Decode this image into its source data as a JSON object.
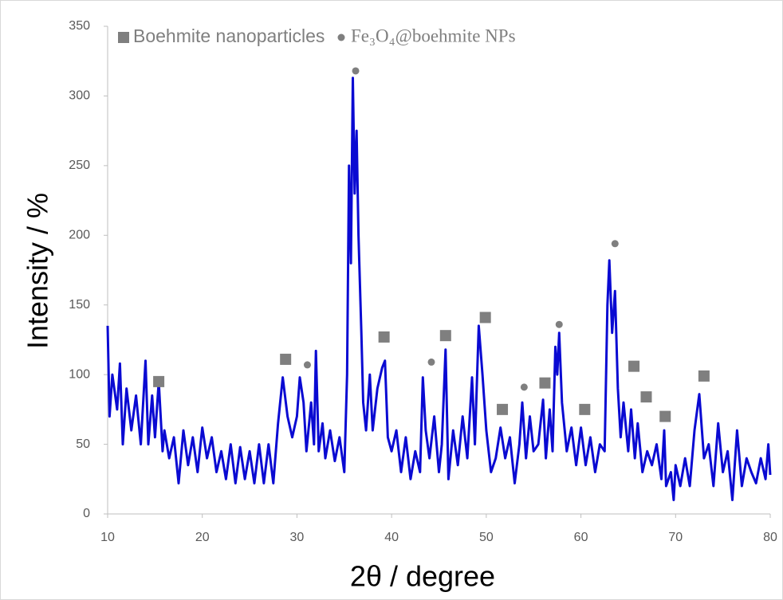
{
  "chart_data": {
    "type": "line",
    "x_label": "2θ / degree",
    "y_label": "Intensity / %",
    "xlim": [
      10,
      80
    ],
    "xticks": [
      10,
      20,
      30,
      40,
      50,
      60,
      70,
      80
    ],
    "ylim": [
      0,
      350
    ],
    "yticks": [
      0,
      50,
      100,
      150,
      200,
      250,
      300,
      350
    ],
    "color": "#0a0ad2",
    "x": [
      10,
      10.2,
      10.5,
      11,
      11.3,
      11.6,
      12,
      12.5,
      13,
      13.5,
      14,
      14.3,
      14.7,
      15,
      15.4,
      15.8,
      16,
      16.5,
      17,
      17.5,
      18,
      18.5,
      19,
      19.5,
      20,
      20.5,
      21,
      21.5,
      22,
      22.5,
      23,
      23.5,
      24,
      24.5,
      25,
      25.5,
      26,
      26.5,
      27,
      27.5,
      28,
      28.5,
      29,
      29.5,
      30,
      30.3,
      30.7,
      31,
      31.5,
      31.8,
      32,
      32.3,
      32.7,
      33,
      33.5,
      34,
      34.5,
      35,
      35.3,
      35.5,
      35.7,
      35.9,
      36.1,
      36.3,
      36.5,
      36.8,
      37,
      37.3,
      37.7,
      38,
      38.5,
      39,
      39.3,
      39.6,
      40,
      40.5,
      41,
      41.5,
      42,
      42.5,
      43,
      43.3,
      43.6,
      44,
      44.5,
      45,
      45.3,
      45.7,
      46,
      46.5,
      47,
      47.5,
      48,
      48.5,
      48.8,
      49.2,
      49.6,
      50,
      50.5,
      51,
      51.5,
      52,
      52.5,
      53,
      53.5,
      53.8,
      54.2,
      54.6,
      55,
      55.5,
      56,
      56.3,
      56.7,
      57,
      57.3,
      57.5,
      57.7,
      58,
      58.5,
      59,
      59.5,
      60,
      60.5,
      61,
      61.5,
      62,
      62.5,
      62.8,
      63,
      63.3,
      63.6,
      63.9,
      64.2,
      64.5,
      65,
      65.3,
      65.7,
      66,
      66.5,
      67,
      67.5,
      68,
      68.5,
      68.8,
      69,
      69.5,
      69.8,
      70,
      70.5,
      71,
      71.5,
      72,
      72.5,
      73,
      73.5,
      74,
      74.5,
      75,
      75.5,
      76,
      76.5,
      77,
      77.5,
      78,
      78.5,
      79,
      79.5,
      79.8,
      80
    ],
    "values": [
      135,
      70,
      100,
      75,
      108,
      50,
      90,
      60,
      85,
      50,
      110,
      50,
      85,
      55,
      95,
      45,
      60,
      40,
      55,
      22,
      60,
      35,
      55,
      30,
      62,
      40,
      55,
      30,
      45,
      25,
      50,
      22,
      48,
      25,
      45,
      22,
      50,
      22,
      50,
      22,
      65,
      98,
      70,
      55,
      70,
      98,
      80,
      45,
      80,
      50,
      117,
      45,
      65,
      40,
      60,
      38,
      55,
      30,
      100,
      250,
      180,
      313,
      230,
      275,
      200,
      130,
      80,
      60,
      100,
      60,
      90,
      105,
      110,
      55,
      45,
      60,
      30,
      55,
      25,
      45,
      30,
      98,
      60,
      40,
      70,
      30,
      50,
      118,
      25,
      60,
      35,
      70,
      40,
      98,
      50,
      135,
      100,
      60,
      30,
      40,
      62,
      40,
      55,
      22,
      50,
      80,
      40,
      70,
      45,
      50,
      82,
      40,
      75,
      45,
      120,
      100,
      130,
      80,
      45,
      62,
      35,
      62,
      35,
      55,
      30,
      50,
      45,
      150,
      182,
      130,
      160,
      90,
      55,
      80,
      45,
      75,
      40,
      65,
      30,
      45,
      35,
      50,
      25,
      60,
      20,
      30,
      10,
      35,
      20,
      40,
      20,
      60,
      86,
      40,
      50,
      20,
      65,
      30,
      45,
      10,
      60,
      20,
      40,
      30,
      22,
      40,
      25,
      50,
      28
    ],
    "markers": [
      {
        "name": "Boehmite nanoparticles",
        "color": "#7f7f7f",
        "shape": "square",
        "x": [
          15.4,
          28.8,
          39.2,
          45.7,
          49.9,
          51.7,
          56.2,
          60.4,
          65.6,
          66.9,
          68.9,
          73
        ],
        "values": [
          95,
          111,
          127,
          128,
          141,
          75,
          94,
          75,
          106,
          84,
          70,
          99
        ]
      },
      {
        "name": "Fe₃O₄@boehmite NPs",
        "color": "#7f7f7f",
        "shape": "circle",
        "x": [
          31.1,
          36.2,
          44.2,
          54,
          57.7,
          63.6
        ],
        "values": [
          107,
          318,
          109,
          91,
          136,
          194
        ]
      }
    ]
  }
}
